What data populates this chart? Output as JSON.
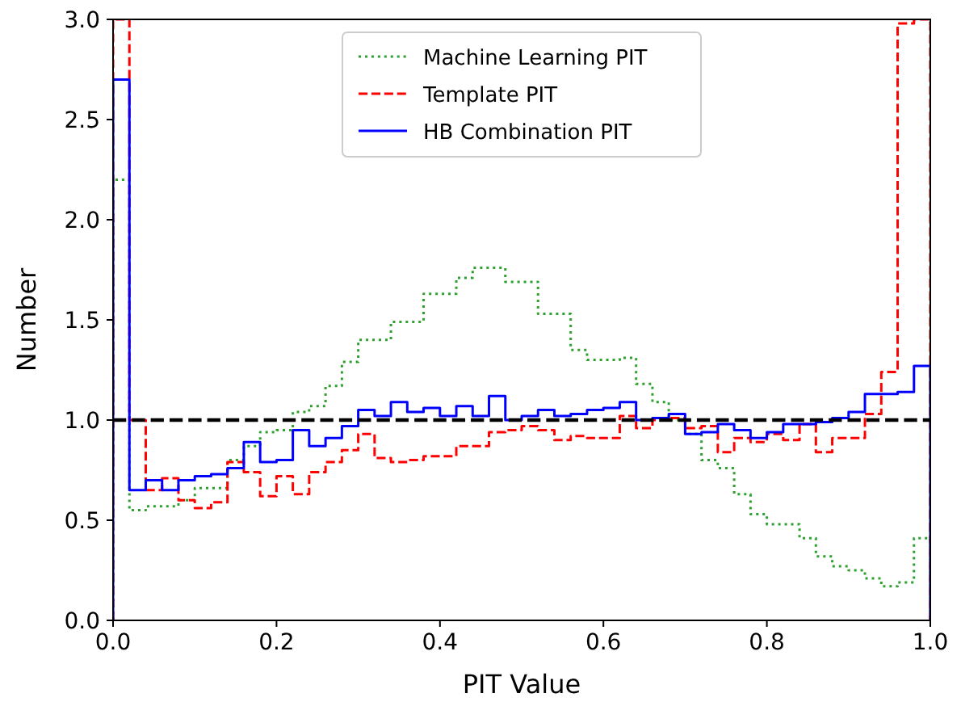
{
  "chart_data": {
    "type": "histogram",
    "xlabel": "PIT Value",
    "ylabel": "Number",
    "bins": [
      0,
      0.02,
      0.04,
      0.06,
      0.08,
      0.1,
      0.12,
      0.14,
      0.16,
      0.18,
      0.2,
      0.22,
      0.24,
      0.26,
      0.28,
      0.3,
      0.32,
      0.34,
      0.36,
      0.38,
      0.4,
      0.42,
      0.44,
      0.46,
      0.48,
      0.5,
      0.52,
      0.54,
      0.56,
      0.58,
      0.6,
      0.62,
      0.64,
      0.66,
      0.68,
      0.7,
      0.72,
      0.74,
      0.76,
      0.78,
      0.8,
      0.82,
      0.84,
      0.86,
      0.88,
      0.9,
      0.92,
      0.94,
      0.96,
      0.98,
      1.0
    ],
    "series": [
      {
        "name": "Machine Learning PIT",
        "color": "#2ca02c",
        "line_style": "dotted",
        "values": [
          2.2,
          0.55,
          0.57,
          0.57,
          0.6,
          0.66,
          0.66,
          0.8,
          0.87,
          0.94,
          0.95,
          1.04,
          1.07,
          1.17,
          1.29,
          1.4,
          1.4,
          1.49,
          1.49,
          1.63,
          1.63,
          1.71,
          1.76,
          1.76,
          1.69,
          1.69,
          1.53,
          1.53,
          1.35,
          1.3,
          1.3,
          1.31,
          1.18,
          1.09,
          1.0,
          0.93,
          0.8,
          0.76,
          0.63,
          0.53,
          0.48,
          0.48,
          0.41,
          0.32,
          0.27,
          0.25,
          0.21,
          0.17,
          0.19,
          0.41
        ]
      },
      {
        "name": "Template PIT",
        "color": "#ff0000",
        "line_style": "dashed",
        "values": [
          3.0,
          1.0,
          0.65,
          0.71,
          0.6,
          0.56,
          0.59,
          0.79,
          0.74,
          0.62,
          0.72,
          0.63,
          0.74,
          0.79,
          0.85,
          0.93,
          0.81,
          0.79,
          0.8,
          0.82,
          0.82,
          0.87,
          0.87,
          0.94,
          0.95,
          0.97,
          0.95,
          0.9,
          0.92,
          0.91,
          0.91,
          1.02,
          0.96,
          1.0,
          1.01,
          0.96,
          0.97,
          0.84,
          0.91,
          0.89,
          0.93,
          0.9,
          0.98,
          0.84,
          0.91,
          0.91,
          1.03,
          1.24,
          2.98,
          3.0
        ]
      },
      {
        "name": "HB Combination PIT",
        "color": "#0000ff",
        "line_style": "solid",
        "values": [
          2.7,
          0.65,
          0.7,
          0.65,
          0.7,
          0.72,
          0.73,
          0.76,
          0.89,
          0.79,
          0.8,
          0.95,
          0.87,
          0.91,
          0.97,
          1.05,
          1.02,
          1.09,
          1.04,
          1.06,
          1.02,
          1.07,
          1.02,
          1.12,
          1.0,
          1.02,
          1.05,
          1.02,
          1.03,
          1.05,
          1.06,
          1.09,
          1.0,
          1.01,
          1.03,
          0.93,
          0.94,
          0.98,
          0.95,
          0.91,
          0.94,
          0.98,
          0.98,
          0.99,
          1.01,
          1.04,
          1.13,
          1.13,
          1.14,
          1.27
        ]
      }
    ],
    "ref_lines": [
      {
        "axis": "y",
        "value": 1.0,
        "color": "#000000",
        "line_style": "dashed"
      }
    ],
    "xlim": [
      0,
      1
    ],
    "ylim": [
      0,
      3
    ],
    "xticks": [
      {
        "value": 0,
        "label": "0.0"
      },
      {
        "value": 0.2,
        "label": "0.2"
      },
      {
        "value": 0.4,
        "label": "0.4"
      },
      {
        "value": 0.6,
        "label": "0.6"
      },
      {
        "value": 0.8,
        "label": "0.8"
      },
      {
        "value": 1.0,
        "label": "1.0"
      }
    ],
    "yticks": [
      {
        "value": 0,
        "label": "0.0"
      },
      {
        "value": 0.5,
        "label": "0.5"
      },
      {
        "value": 1.0,
        "label": "1.0"
      },
      {
        "value": 1.5,
        "label": "1.5"
      },
      {
        "value": 2.0,
        "label": "2.0"
      },
      {
        "value": 2.5,
        "label": "2.5"
      },
      {
        "value": 3.0,
        "label": "3.0"
      }
    ],
    "legend": "top",
    "grid": false
  }
}
